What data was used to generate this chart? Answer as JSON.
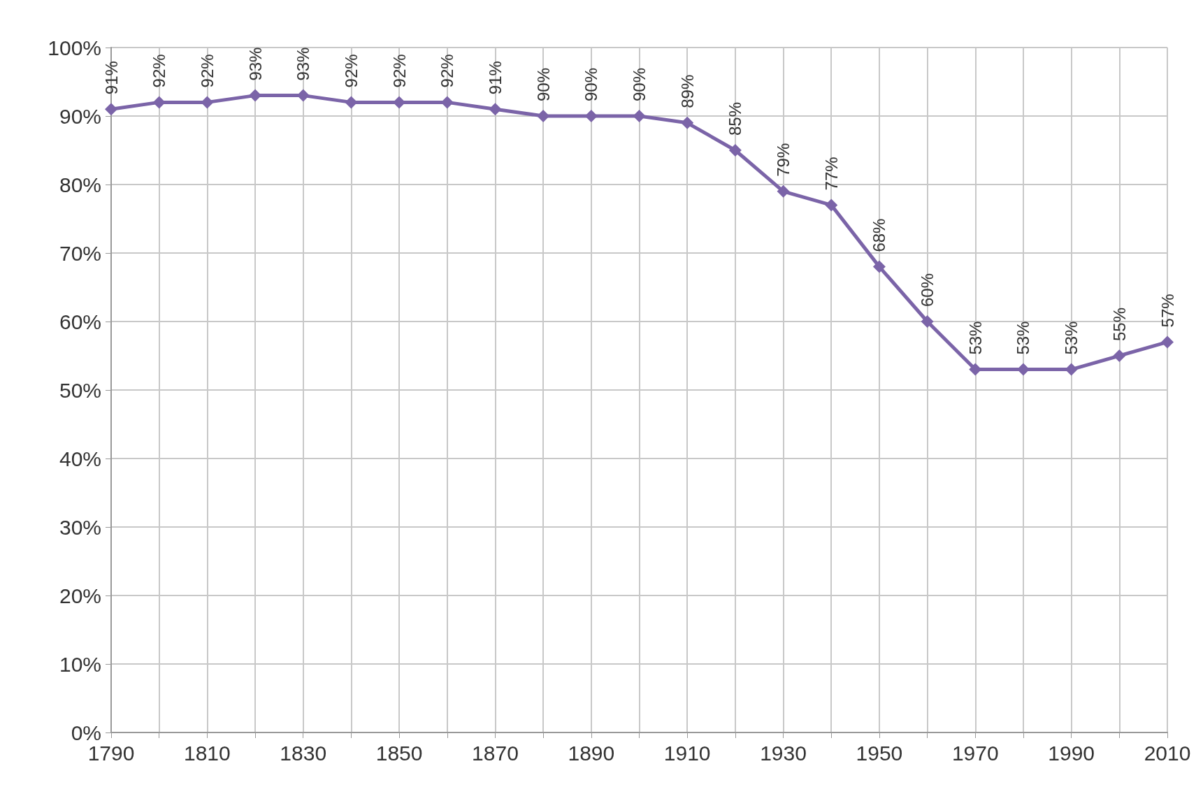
{
  "chart_data": {
    "type": "line",
    "x": [
      1790,
      1800,
      1810,
      1820,
      1830,
      1840,
      1850,
      1860,
      1870,
      1880,
      1890,
      1900,
      1910,
      1920,
      1930,
      1940,
      1950,
      1960,
      1970,
      1980,
      1990,
      2000,
      2010
    ],
    "series": [
      {
        "color": "#7b64a8",
        "values": [
          91,
          92,
          92,
          93,
          93,
          92,
          92,
          92,
          91,
          90,
          90,
          90,
          89,
          85,
          79,
          77,
          68,
          60,
          53,
          53,
          53,
          55,
          57
        ],
        "value_labels": [
          "91%",
          "92%",
          "92%",
          "93%",
          "93%",
          "92%",
          "92%",
          "92%",
          "91%",
          "90%",
          "90%",
          "90%",
          "89%",
          "85%",
          "79%",
          "77%",
          "68%",
          "60%",
          "53%",
          "53%",
          "53%",
          "55%",
          "57%"
        ]
      }
    ],
    "xlim": [
      1790,
      2010
    ],
    "xticks": [
      1790,
      {
        "value": 1800,
        "label": null
      },
      1810,
      {
        "value": 1820,
        "label": null
      },
      1830,
      {
        "value": 1840,
        "label": null
      },
      1850,
      {
        "value": 1860,
        "label": null
      },
      1870,
      {
        "value": 1880,
        "label": null
      },
      1890,
      {
        "value": 1900,
        "label": null
      },
      1910,
      {
        "value": 1920,
        "label": null
      },
      1930,
      {
        "value": 1940,
        "label": null
      },
      1950,
      {
        "value": 1960,
        "label": null
      },
      1970,
      {
        "value": 1980,
        "label": null
      },
      1990,
      {
        "value": 2000,
        "label": null
      },
      2010
    ],
    "ylim": [
      0,
      100
    ],
    "yticks": [
      {
        "value": 0,
        "label": "0%"
      },
      {
        "value": 10,
        "label": "10%"
      },
      {
        "value": 20,
        "label": "20%"
      },
      {
        "value": 30,
        "label": "30%"
      },
      {
        "value": 40,
        "label": "40%"
      },
      {
        "value": 50,
        "label": "50%"
      },
      {
        "value": 60,
        "label": "60%"
      },
      {
        "value": 70,
        "label": "70%"
      },
      {
        "value": 80,
        "label": "80%"
      },
      {
        "value": 90,
        "label": "90%"
      },
      {
        "value": 100,
        "label": "100%"
      }
    ],
    "grid": true,
    "marker": "diamond",
    "line_style": "solid"
  }
}
